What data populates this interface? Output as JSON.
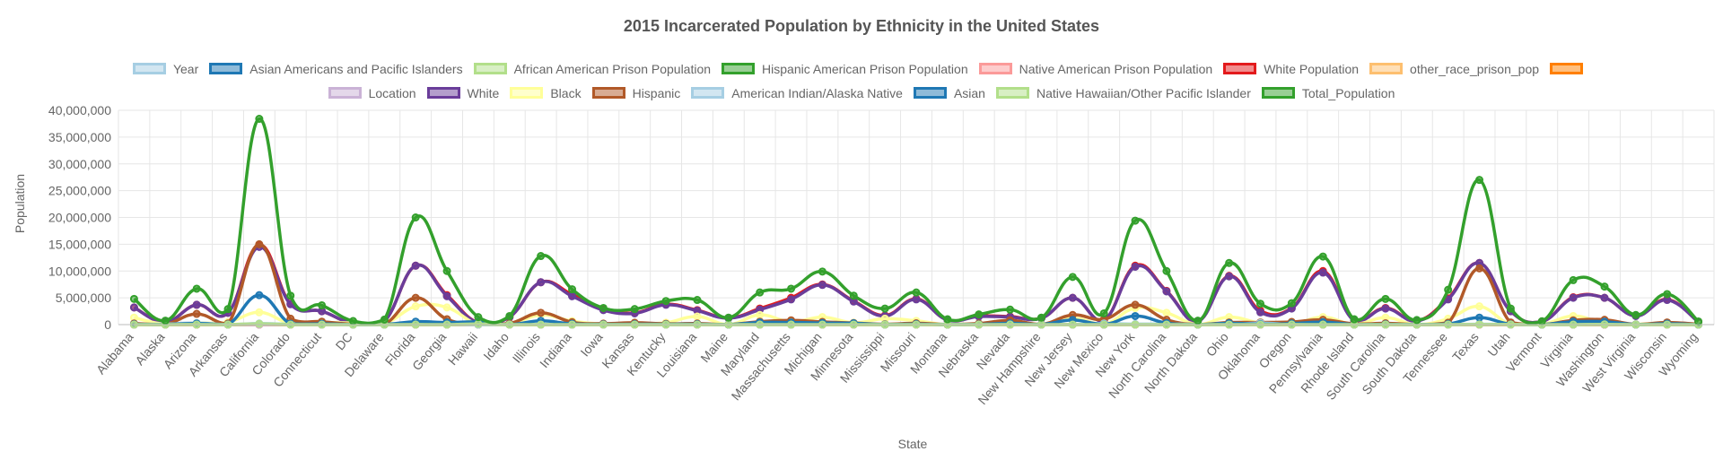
{
  "chart_data": {
    "type": "line",
    "title": "2015 Incarcerated Population by Ethnicity in the United States",
    "xlabel": "State",
    "ylabel": "Population",
    "ylim": [
      0,
      40000000
    ],
    "yticks": [
      "0",
      "5,000,000",
      "10,000,000",
      "15,000,000",
      "20,000,000",
      "25,000,000",
      "30,000,000",
      "35,000,000",
      "40,000,000"
    ],
    "ytick_values": [
      0,
      5000000,
      10000000,
      15000000,
      20000000,
      25000000,
      30000000,
      35000000,
      40000000
    ],
    "grid": true,
    "legend_position": "top",
    "categories": [
      "Alabama",
      "Alaska",
      "Arizona",
      "Arkansas",
      "California",
      "Colorado",
      "Connecticut",
      "DC",
      "Delaware",
      "Florida",
      "Georgia",
      "Hawaii",
      "Idaho",
      "Illinois",
      "Indiana",
      "Iowa",
      "Kansas",
      "Kentucky",
      "Louisiana",
      "Maine",
      "Maryland",
      "Massachusetts",
      "Michigan",
      "Minnesota",
      "Mississippi",
      "Missouri",
      "Montana",
      "Nebraska",
      "Nevada",
      "New Hampshire",
      "New Jersey",
      "New Mexico",
      "New York",
      "North Carolina",
      "North Dakota",
      "Ohio",
      "Oklahoma",
      "Oregon",
      "Pennsylvania",
      "Rhode Island",
      "South Carolina",
      "South Dakota",
      "Tennessee",
      "Texas",
      "Utah",
      "Vermont",
      "Virginia",
      "Washington",
      "West Virginia",
      "Wisconsin",
      "Wyoming"
    ],
    "legend_rows": [
      [
        {
          "name": "Year",
          "color": "#a6cee3"
        },
        {
          "name": "Asian Americans and Pacific Islanders",
          "color": "#1f78b4"
        },
        {
          "name": "African American Prison Population",
          "color": "#b2df8a"
        },
        {
          "name": "Hispanic American Prison Population",
          "color": "#33a02c"
        },
        {
          "name": "Native American Prison Population",
          "color": "#fb9a99"
        },
        {
          "name": "White Population",
          "color": "#e31a1c"
        },
        {
          "name": "other_race_prison_pop",
          "color": "#fdbf6f"
        },
        {
          "name": "",
          "color": "#ff7f00"
        }
      ],
      [
        {
          "name": "Location",
          "color": "#cab2d6"
        },
        {
          "name": "White",
          "color": "#6a3d9a"
        },
        {
          "name": "Black",
          "color": "#ffff99"
        },
        {
          "name": "Hispanic",
          "color": "#b15928"
        },
        {
          "name": "American Indian/Alaska Native",
          "color": "#a6cee3"
        },
        {
          "name": "Asian",
          "color": "#1f78b4"
        },
        {
          "name": "Native Hawaiian/Other Pacific Islander",
          "color": "#b2df8a"
        },
        {
          "name": "Total_Population",
          "color": "#33a02c"
        }
      ]
    ],
    "series": [
      {
        "name": "Year",
        "color": "#a6cee3",
        "values": [
          2015,
          2015,
          2015,
          2015,
          2015,
          2015,
          2015,
          2015,
          2015,
          2015,
          2015,
          2015,
          2015,
          2015,
          2015,
          2015,
          2015,
          2015,
          2015,
          2015,
          2015,
          2015,
          2015,
          2015,
          2015,
          2015,
          2015,
          2015,
          2015,
          2015,
          2015,
          2015,
          2015,
          2015,
          2015,
          2015,
          2015,
          2015,
          2015,
          2015,
          2015,
          2015,
          2015,
          2015,
          2015,
          2015,
          2015,
          2015,
          2015,
          2015,
          2015
        ]
      },
      {
        "name": "Asian Americans and Pacific Islanders",
        "color": "#1f78b4",
        "values": [
          100,
          200,
          400,
          100,
          5000,
          300,
          100,
          20,
          20,
          400,
          300,
          300,
          100,
          500,
          200,
          50,
          100,
          80,
          100,
          20,
          200,
          300,
          200,
          300,
          50,
          150,
          20,
          100,
          300,
          20,
          300,
          50,
          1000,
          400,
          20,
          300,
          100,
          300,
          300,
          50,
          100,
          20,
          200,
          1000,
          200,
          20,
          300,
          600,
          20,
          200,
          20
        ]
      },
      {
        "name": "African American Prison Population",
        "color": "#b2df8a",
        "values": [
          15000,
          2000,
          9000,
          7000,
          40000,
          5000,
          9000,
          1000,
          3000,
          30000,
          35000,
          1000,
          500,
          30000,
          10000,
          3000,
          4000,
          6000,
          25000,
          300,
          15000,
          5000,
          20000,
          4000,
          12000,
          10000,
          500,
          2000,
          4000,
          300,
          15000,
          1000,
          25000,
          20000,
          200,
          20000,
          8000,
          2000,
          24000,
          1000,
          15000,
          300,
          10000,
          50000,
          500,
          200,
          20000,
          4000,
          1000,
          9000,
          200
        ]
      },
      {
        "name": "Hispanic American Prison Population",
        "color": "#33a02c",
        "values": [
          500,
          200,
          15000,
          1000,
          70000,
          7000,
          5000,
          200,
          500,
          15000,
          5000,
          300,
          1000,
          8000,
          2000,
          500,
          2000,
          500,
          500,
          100,
          1000,
          5000,
          2000,
          1000,
          500,
          1000,
          200,
          1000,
          5000,
          200,
          6000,
          5000,
          15000,
          2000,
          100,
          2000,
          2000,
          2000,
          6000,
          1000,
          1000,
          200,
          1000,
          50000,
          1500,
          50,
          2000,
          5000,
          100,
          2000,
          300
        ]
      },
      {
        "name": "Native American Prison Population",
        "color": "#fb9a99",
        "values": [
          200,
          2000,
          2000,
          200,
          2000,
          500,
          200,
          50,
          50,
          500,
          200,
          200,
          300,
          200,
          200,
          200,
          500,
          100,
          200,
          50,
          200,
          200,
          1000,
          1500,
          100,
          200,
          1500,
          500,
          500,
          50,
          100,
          2000,
          500,
          1000,
          1000,
          500,
          3000,
          500,
          300,
          100,
          200,
          1500,
          200,
          500,
          500,
          50,
          200,
          1500,
          50,
          1000,
          200
        ]
      },
      {
        "name": "White Population",
        "color": "#e31a1c",
        "values": [
          3200000,
          490000,
          3700000,
          2200000,
          14900000,
          3900000,
          2500000,
          240000,
          630000,
          11000000,
          5500000,
          340000,
          1400000,
          7900000,
          5600000,
          2800000,
          2200000,
          3800000,
          2700000,
          1250000,
          3000000,
          5000000,
          7500000,
          4400000,
          1700000,
          4800000,
          890000,
          1600000,
          1500000,
          1200000,
          5000000,
          800000,
          11000000,
          6300000,
          640000,
          9100000,
          2600000,
          3100000,
          10000000,
          800000,
          3100000,
          700000,
          4900000,
          11500000,
          2500000,
          590000,
          5100000,
          5000000,
          1700000,
          4700000,
          490000
        ]
      },
      {
        "name": "other_race_prison_pop",
        "color": "#fdbf6f",
        "values": [
          500,
          300,
          2000,
          300,
          10000,
          1000,
          500,
          50,
          50,
          1000,
          1000,
          500,
          300,
          2000,
          500,
          200,
          500,
          300,
          500,
          50,
          500,
          1000,
          1000,
          1000,
          200,
          500,
          100,
          300,
          1000,
          50,
          1000,
          500,
          3000,
          1000,
          100,
          1000,
          500,
          1000,
          1500,
          200,
          500,
          100,
          500,
          5000,
          500,
          50,
          1000,
          2000,
          100,
          500,
          50
        ]
      },
      {
        "name": "",
        "color": "#ff7f00",
        "values": [
          300,
          200,
          800,
          200,
          3000,
          600,
          300,
          50,
          100,
          1500,
          800,
          200,
          300,
          1000,
          500,
          200,
          300,
          300,
          300,
          80,
          600,
          800,
          800,
          600,
          200,
          500,
          100,
          200,
          500,
          100,
          800,
          300,
          2000,
          800,
          100,
          800,
          500,
          600,
          1000,
          200,
          400,
          100,
          500,
          2500,
          400,
          50,
          800,
          1000,
          100,
          400,
          50
        ]
      },
      {
        "name": "Location",
        "color": "#cab2d6",
        "values": [
          0,
          0,
          0,
          0,
          0,
          0,
          0,
          0,
          0,
          0,
          0,
          0,
          0,
          0,
          0,
          0,
          0,
          0,
          0,
          0,
          0,
          0,
          0,
          0,
          0,
          0,
          0,
          0,
          0,
          0,
          0,
          0,
          0,
          0,
          0,
          0,
          0,
          0,
          0,
          0,
          0,
          0,
          0,
          0,
          0,
          0,
          0,
          0,
          0,
          0,
          0
        ]
      },
      {
        "name": "White",
        "color": "#6a3d9a",
        "values": [
          3200000,
          450000,
          3700000,
          2200000,
          14500000,
          3800000,
          2500000,
          230000,
          600000,
          11000000,
          5300000,
          300000,
          1400000,
          7900000,
          5300000,
          2700000,
          2100000,
          3700000,
          2600000,
          1200000,
          2800000,
          4700000,
          7400000,
          4300000,
          1600000,
          4700000,
          850000,
          1500000,
          1400000,
          1200000,
          5000000,
          800000,
          10800000,
          6200000,
          600000,
          9000000,
          2300000,
          3000000,
          9700000,
          750000,
          3000000,
          650000,
          4700000,
          11500000,
          2500000,
          580000,
          5000000,
          5000000,
          1600000,
          4600000,
          480000
        ]
      },
      {
        "name": "Black",
        "color": "#ffff99",
        "values": [
          1300000,
          30000,
          300000,
          450000,
          2300000,
          220000,
          400000,
          300000,
          200000,
          3400000,
          3200000,
          25000,
          10000,
          1800000,
          650000,
          100000,
          180000,
          350000,
          1500000,
          20000,
          1800000,
          500000,
          1400000,
          350000,
          1100000,
          700000,
          5000,
          100000,
          280000,
          20000,
          1200000,
          50000,
          3100000,
          2200000,
          15000,
          1400000,
          300000,
          80000,
          1400000,
          80000,
          1300000,
          10000,
          1100000,
          3400000,
          30000,
          8000,
          1600000,
          300000,
          60000,
          350000,
          5000
        ]
      },
      {
        "name": "Hispanic",
        "color": "#b15928",
        "values": [
          200000,
          50000,
          2000000,
          200000,
          15000000,
          1100000,
          550000,
          70000,
          90000,
          5000000,
          1000000,
          130000,
          200000,
          2200000,
          450000,
          180000,
          350000,
          150000,
          200000,
          20000,
          550000,
          800000,
          500000,
          300000,
          80000,
          250000,
          40000,
          200000,
          800000,
          40000,
          1800000,
          1000000,
          3700000,
          900000,
          30000,
          400000,
          400000,
          500000,
          900000,
          150000,
          250000,
          30000,
          350000,
          10500000,
          400000,
          10000,
          800000,
          900000,
          30000,
          400000,
          60000
        ]
      },
      {
        "name": "American Indian/Alaska Native",
        "color": "#a6cee3",
        "values": [
          30000,
          100000,
          280000,
          20000,
          200000,
          40000,
          10000,
          2000,
          3000,
          50000,
          30000,
          3000,
          20000,
          30000,
          15000,
          10000,
          20000,
          10000,
          25000,
          7000,
          15000,
          10000,
          50000,
          55000,
          15000,
          25000,
          65000,
          15000,
          30000,
          3000,
          15000,
          200000,
          100000,
          120000,
          40000,
          20000,
          300000,
          40000,
          20000,
          5000,
          15000,
          70000,
          15000,
          80000,
          30000,
          2000,
          20000,
          90000,
          2000,
          50000,
          15000
        ]
      },
      {
        "name": "Asian",
        "color": "#1f78b4",
        "values": [
          60000,
          40000,
          200000,
          40000,
          5500000,
          160000,
          150000,
          25000,
          35000,
          550000,
          400000,
          500000,
          25000,
          700000,
          150000,
          70000,
          80000,
          60000,
          80000,
          15000,
          400000,
          400000,
          300000,
          250000,
          25000,
          100000,
          5000,
          40000,
          250000,
          30000,
          850000,
          30000,
          1600000,
          280000,
          10000,
          250000,
          80000,
          200000,
          450000,
          35000,
          70000,
          10000,
          110000,
          1300000,
          70000,
          10000,
          550000,
          550000,
          15000,
          170000,
          5000
        ]
      },
      {
        "name": "Native Hawaiian/Other Pacific Islander",
        "color": "#b2df8a",
        "values": [
          2000,
          8000,
          10000,
          8000,
          150000,
          6000,
          1000,
          500,
          500,
          10000,
          6000,
          130000,
          2000,
          3000,
          2000,
          2000,
          2000,
          2000,
          2000,
          500,
          3000,
          2000,
          2000,
          2000,
          1000,
          6000,
          1000,
          1000,
          20000,
          500,
          3000,
          2000,
          8000,
          6000,
          500,
          4000,
          5000,
          15000,
          3000,
          500,
          3000,
          500,
          4000,
          25000,
          30000,
          200,
          7000,
          45000,
          500,
          2000,
          500
        ]
      },
      {
        "name": "Total_Population",
        "color": "#33a02c",
        "values": [
          4800000,
          740000,
          6700000,
          2900000,
          38400000,
          5400000,
          3600000,
          670000,
          940000,
          20000000,
          10000000,
          1400000,
          1600000,
          12800000,
          6600000,
          3100000,
          2900000,
          4400000,
          4600000,
          1300000,
          6000000,
          6700000,
          9900000,
          5400000,
          3000000,
          6000000,
          1000000,
          1900000,
          2800000,
          1300000,
          8900000,
          2100000,
          19400000,
          10000000,
          740000,
          11500000,
          3900000,
          4000000,
          12700000,
          1000000,
          4800000,
          850000,
          6500000,
          27000000,
          3000000,
          620000,
          8300000,
          7100000,
          1800000,
          5700000,
          590000
        ]
      }
    ]
  }
}
